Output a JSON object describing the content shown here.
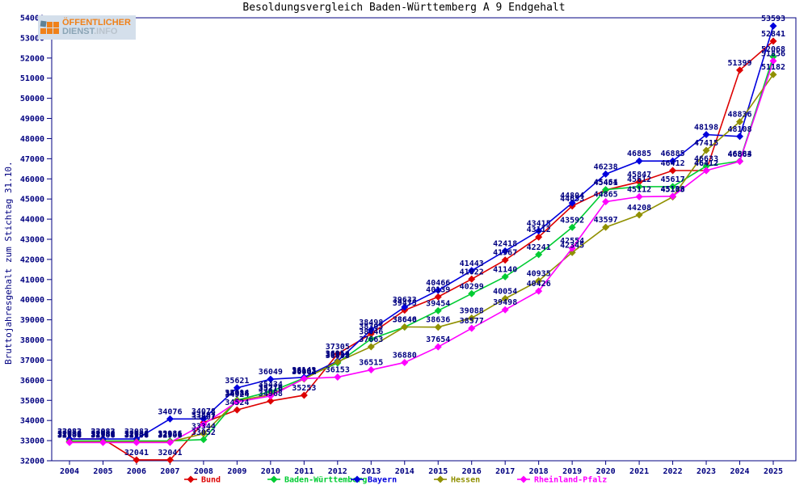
{
  "title": "Besoldungsvergleich Baden-Württemberg A 9 Endgehalt",
  "logo": {
    "line1": "ÖFFENTLICHER",
    "line2_part1": "DIENST",
    "line2_part2": ".INFO"
  },
  "colors": {
    "axis": "#000080",
    "tick_text": "#000080",
    "point_label_text": "#000080",
    "background": "#ffffff"
  },
  "chart_data": {
    "type": "line",
    "title": "Besoldungsvergleich Baden-Württemberg A 9 Endgehalt",
    "xlabel": "",
    "ylabel": "Bruttojahresgehalt zum Stichtag 31.10.",
    "ylim": [
      32000,
      54000
    ],
    "ytick_step": 1000,
    "grid": false,
    "point_labels": true,
    "legend_position": "bottom",
    "x": [
      2004,
      2005,
      2006,
      2007,
      2008,
      2009,
      2010,
      2011,
      2012,
      2013,
      2014,
      2015,
      2016,
      2017,
      2018,
      2019,
      2020,
      2021,
      2022,
      2023,
      2024,
      2025
    ],
    "series": [
      {
        "name": "Bund",
        "color": "#dd0000",
        "values": [
          33083,
          33083,
          32041,
          32041,
          33897,
          34524,
          34968,
          35253,
          37305,
          38305,
          39475,
          40139,
          41022,
          41967,
          43112,
          44653,
          45451,
          45847,
          46412,
          46412,
          51399,
          52841
        ]
      },
      {
        "name": "Baden-Württemberg",
        "color": "#00cc33",
        "values": [
          32986,
          32986,
          32986,
          32986,
          33052,
          35014,
          35434,
          36103,
          36858,
          38046,
          38640,
          39454,
          40299,
          41140,
          42241,
          43592,
          45464,
          45612,
          45617,
          46633,
          46884,
          52068
        ]
      },
      {
        "name": "Bayern",
        "color": "#0000dd",
        "values": [
          33083,
          33083,
          33083,
          34076,
          34078,
          35621,
          36049,
          36143,
          36954,
          38498,
          39633,
          40466,
          41443,
          42418,
          43415,
          44804,
          46238,
          46885,
          46885,
          48198,
          48108,
          53593
        ]
      },
      {
        "name": "Hessen",
        "color": "#909000",
        "values": [
          32941,
          32941,
          32941,
          32941,
          33344,
          34988,
          35276,
          36061,
          36913,
          37663,
          38646,
          38636,
          39088,
          40054,
          40935,
          42345,
          43597,
          44208,
          45103,
          47415,
          48836,
          51182
        ]
      },
      {
        "name": "Rheinland-Pfalz",
        "color": "#ff00ff",
        "values": [
          32906,
          32906,
          32906,
          32906,
          33807,
          34924,
          35216,
          36081,
          36153,
          36515,
          36880,
          37654,
          38577,
          39498,
          40426,
          42554,
          44865,
          45112,
          45136,
          46412,
          46863,
          51856
        ]
      }
    ]
  }
}
